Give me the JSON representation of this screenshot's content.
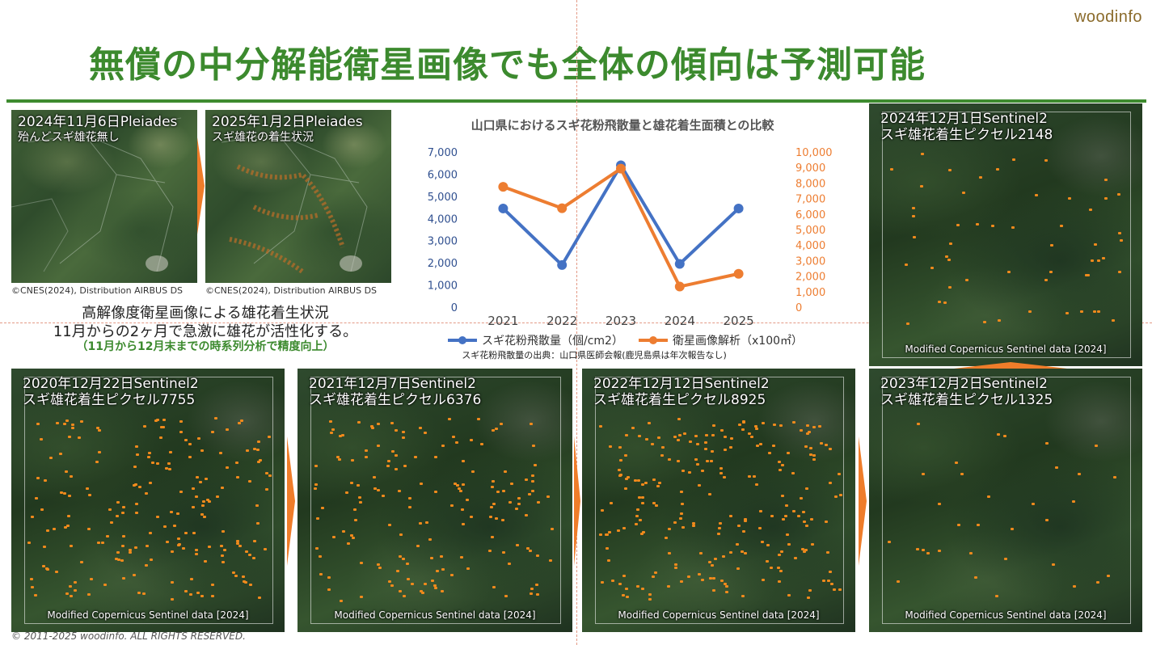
{
  "header": {
    "logo": "woodinfo",
    "title": "無償の中分解能衛星画像でも全体の傾向は予測可能"
  },
  "pleiades": [
    {
      "line1": "2024年11月6日Pleiades",
      "line2": "殆んどスギ雄花無し",
      "credit": "©CNES(2024), Distribution AIRBUS DS"
    },
    {
      "line1": "2025年1月2日Pleiades",
      "line2": "スギ雄花の着生状況",
      "credit": "©CNES(2024), Distribution AIRBUS DS"
    }
  ],
  "description": {
    "line1": "高解像度衛星画像による雄花着生状況",
    "line2": "11月からの2ヶ月で急激に雄花が活性化する。",
    "line3": "（11月から12月末までの時系列分析で精度向上）"
  },
  "sentinel": [
    {
      "line1": "2020年12月22日Sentinel2",
      "line2": "スギ雄花着生ピクセル7755",
      "credit": "Modified Copernicus Sentinel data [2024]",
      "spots": 7755
    },
    {
      "line1": "2021年12月7日Sentinel2",
      "line2": "スギ雄花着生ピクセル6376",
      "credit": "Modified Copernicus Sentinel data [2024]",
      "spots": 6376
    },
    {
      "line1": "2022年12月12日Sentinel2",
      "line2": "スギ雄花着生ピクセル8925",
      "credit": "Modified Copernicus Sentinel data [2024]",
      "spots": 8925
    },
    {
      "line1": "2023年12月2日Sentinel2",
      "line2": "スギ雄花着生ピクセル1325",
      "credit": "Modified Copernicus Sentinel data [2024]",
      "spots": 1325
    },
    {
      "line1": "2024年12月1日Sentinel2",
      "line2": "スギ雄花着生ピクセル2148",
      "credit": "Modified Copernicus Sentinel data [2024]",
      "spots": 2148
    }
  ],
  "chart_data": {
    "type": "line",
    "title": "山口県におけるスギ花粉飛散量と雄花着生面積との比較",
    "categories": [
      "2021",
      "2022",
      "2023",
      "2024",
      "2025"
    ],
    "series": [
      {
        "name": "スギ花粉飛散量（個/cm2）",
        "axis": "left",
        "color": "#4472c4",
        "values": [
          4450,
          1900,
          6400,
          1950,
          4450
        ]
      },
      {
        "name": "衛星画像解析（x100㎡）",
        "axis": "right",
        "color": "#ed7d31",
        "values": [
          7755,
          6376,
          8925,
          1325,
          2148
        ]
      }
    ],
    "y_left": {
      "range": [
        0,
        7000
      ],
      "ticks": [
        "0",
        "1,000",
        "2,000",
        "3,000",
        "4,000",
        "5,000",
        "6,000",
        "7,000"
      ],
      "color": "#2f4f8f"
    },
    "y_right": {
      "range": [
        0,
        10000
      ],
      "ticks": [
        "0",
        "1,000",
        "2,000",
        "3,000",
        "4,000",
        "5,000",
        "6,000",
        "7,000",
        "8,000",
        "9,000",
        "10,000"
      ],
      "color": "#ed7d31"
    },
    "legend_position": "bottom",
    "grid": false,
    "source_note": "スギ花粉飛散量の出典：山口県医師会報(鹿児島県は年次報告なし)"
  },
  "footer": {
    "copyright": "©  2011-2025 woodinfo. ALL RIGHTS RESERVED."
  }
}
